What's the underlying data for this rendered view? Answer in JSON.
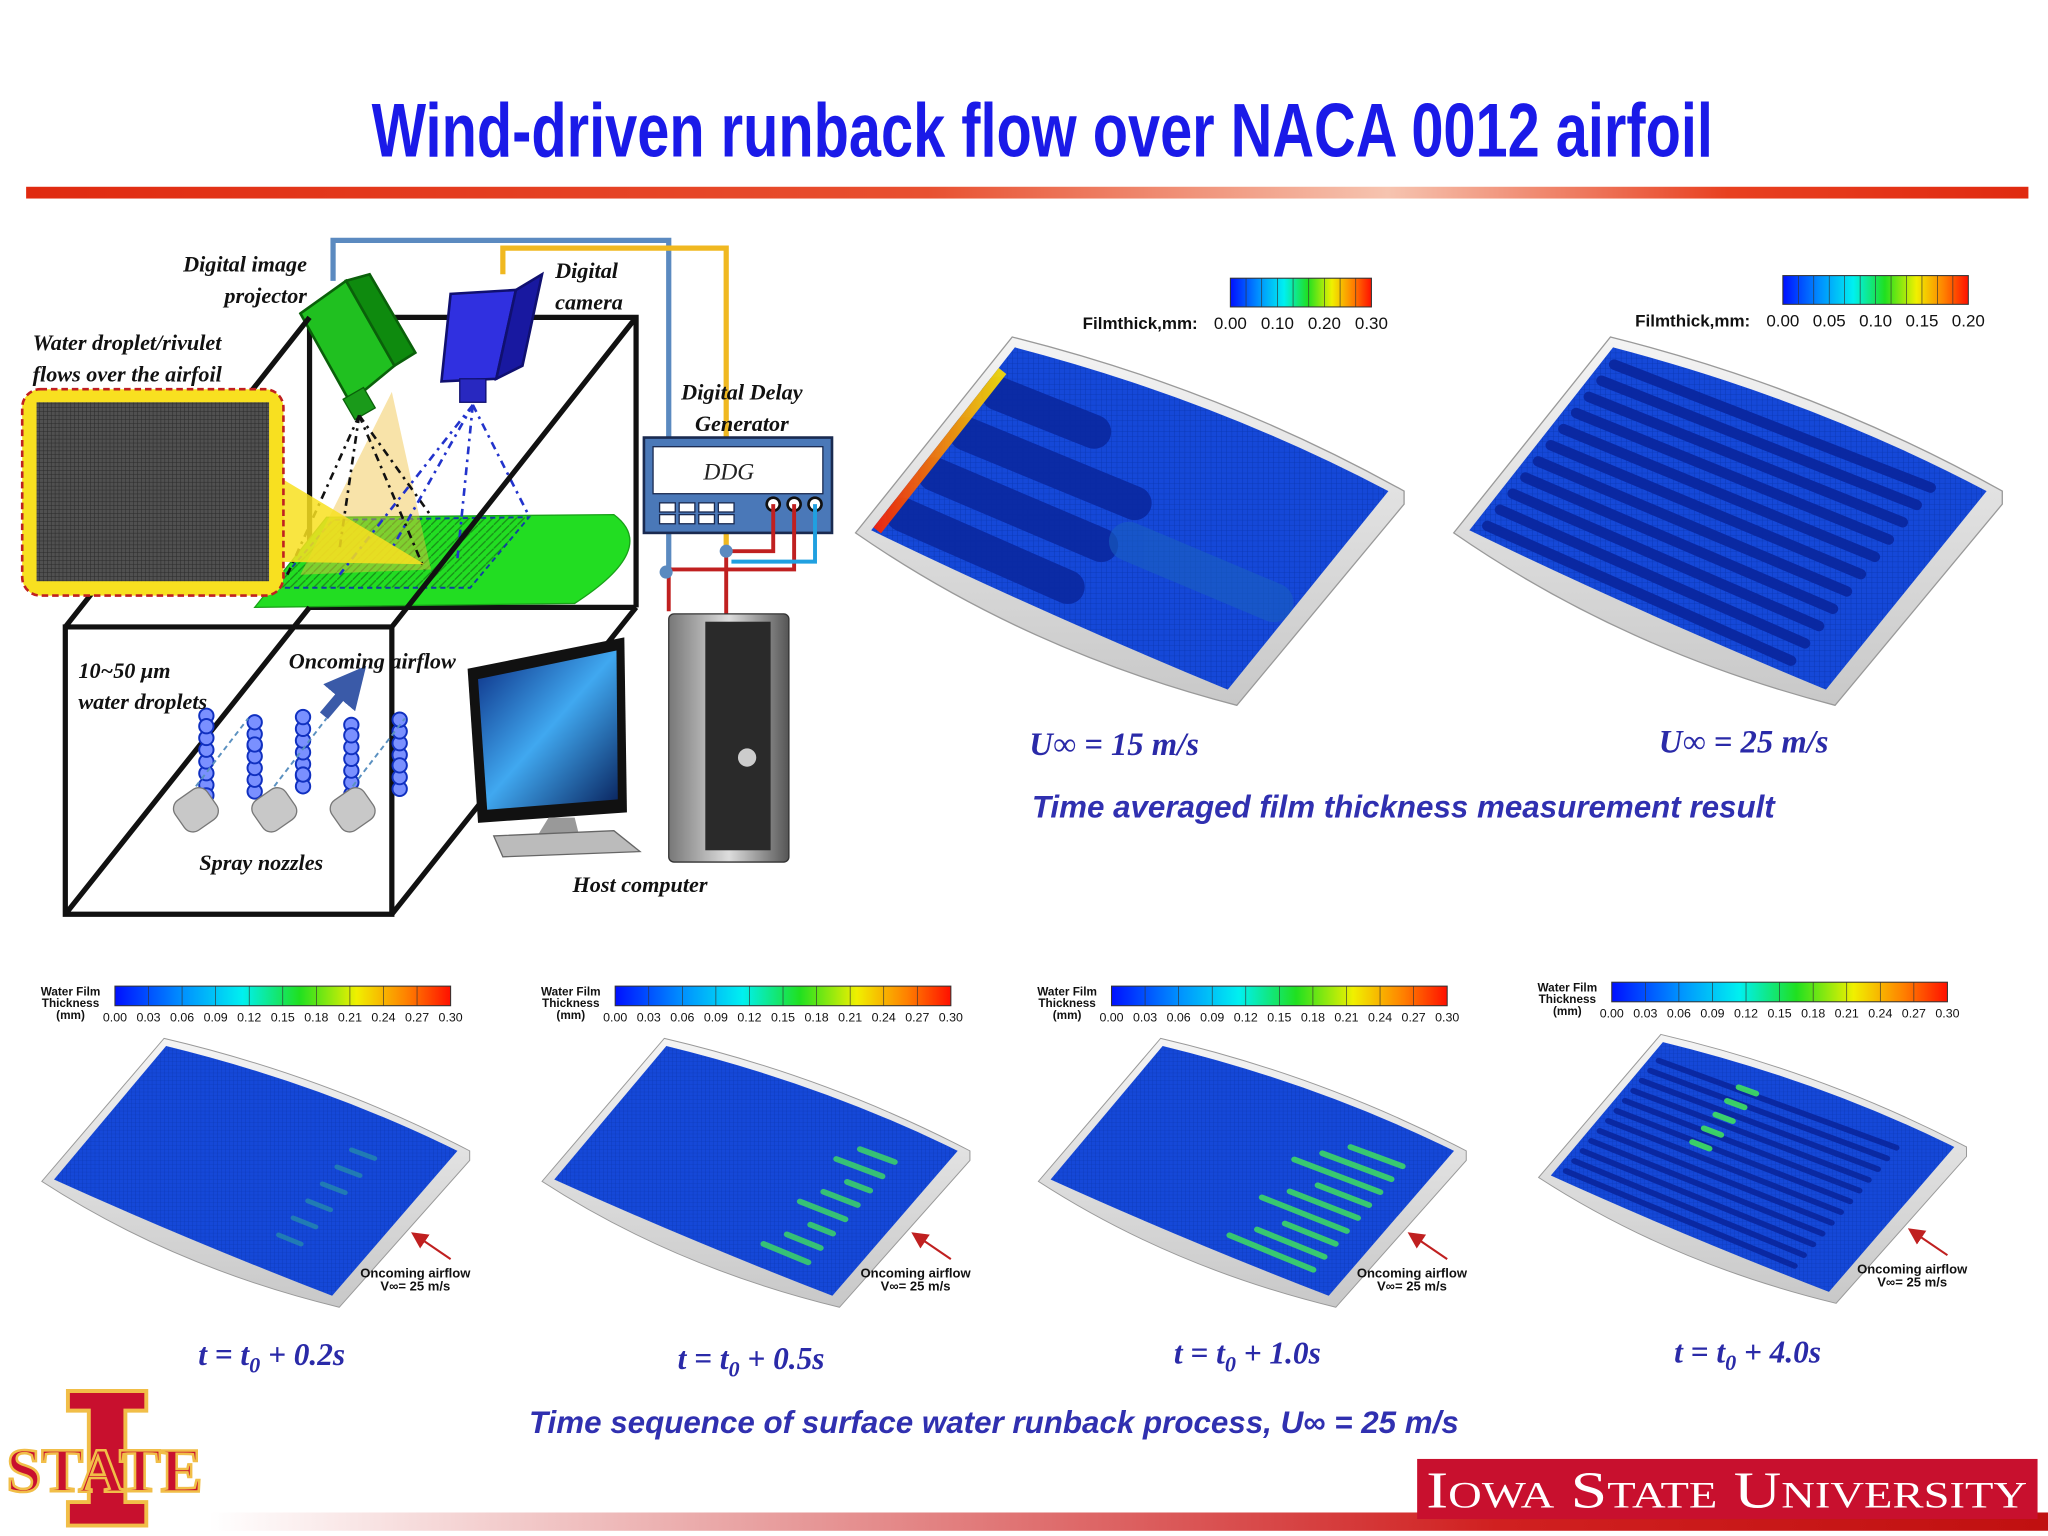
{
  "header": {
    "title": "Wind-driven runback flow over NACA 0012 airfoil"
  },
  "schematic": {
    "projector": [
      "Digital image",
      "projector"
    ],
    "camera": [
      "Digital",
      "camera"
    ],
    "inset": [
      "Water droplet/rivulet",
      "flows over the airfoil"
    ],
    "ddg_title": [
      "Digital Delay",
      "Generator"
    ],
    "ddg": "DDG",
    "droplets": [
      "10~50 μm",
      "water droplets"
    ],
    "airflow": "Oncoming airflow",
    "nozzles": "Spray nozzles",
    "computer": "Host computer"
  },
  "measurement": {
    "panels": [
      {
        "colorbar_label": "Filmthick,mm:",
        "ticks": [
          "0.00",
          "0.10",
          "0.20",
          "0.30"
        ],
        "caption": "U∞ = 15 m/s"
      },
      {
        "colorbar_label": "Filmthick,mm:",
        "ticks": [
          "0.00",
          "0.05",
          "0.10",
          "0.15",
          "0.20"
        ],
        "caption": "U∞ = 25 m/s"
      }
    ],
    "caption": "Time averaged film thickness measurement result"
  },
  "sequence": {
    "colorbar_label": [
      "Water Film",
      "Thickness",
      "(mm)"
    ],
    "ticks": [
      "0.00",
      "0.03",
      "0.06",
      "0.09",
      "0.12",
      "0.15",
      "0.18",
      "0.21",
      "0.24",
      "0.27",
      "0.30"
    ],
    "airflow": [
      "Oncoming airflow",
      "V∞= 25 m/s"
    ],
    "panels": [
      {
        "time": [
          "t = t",
          "0",
          "+ 0.2s"
        ]
      },
      {
        "time": [
          "t = t",
          "0",
          "+ 0.5s"
        ]
      },
      {
        "time": [
          "t = t",
          "0",
          "+ 1.0s"
        ]
      },
      {
        "time": [
          "t = t",
          "0",
          "+ 4.0s"
        ]
      }
    ],
    "caption": "Time sequence of surface water runback process, U∞ = 25 m/s"
  },
  "footer": {
    "logo": "STATE",
    "university": "Iowa State University"
  }
}
